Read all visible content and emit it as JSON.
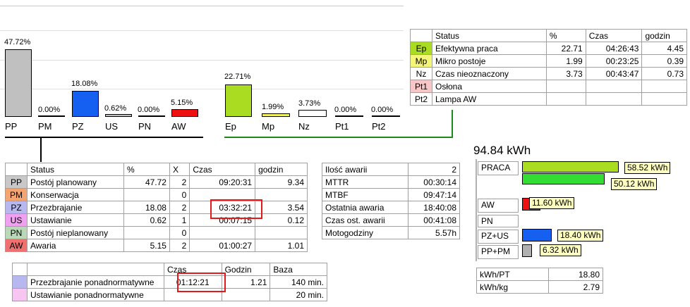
{
  "left_chart": {
    "bars": [
      {
        "code": "PP",
        "pct": "47.72%",
        "value": 47.72,
        "color": "#c0c0c0"
      },
      {
        "code": "PM",
        "pct": "0.00%",
        "value": 0,
        "color": "#c0c0c0"
      },
      {
        "code": "PZ",
        "pct": "18.08%",
        "value": 18.08,
        "color": "#1560f0"
      },
      {
        "code": "US",
        "pct": "0.62%",
        "value": 0.62,
        "color": "#c0c0c0"
      },
      {
        "code": "PN",
        "pct": "0.00%",
        "value": 0,
        "color": "#c0c0c0"
      },
      {
        "code": "AW",
        "pct": "5.15%",
        "value": 5.15,
        "color": "#ee1111"
      }
    ]
  },
  "right_chart": {
    "bars": [
      {
        "code": "Ep",
        "pct": "22.71%",
        "value": 22.71,
        "color": "#aadd22"
      },
      {
        "code": "Mp",
        "pct": "1.99%",
        "value": 1.99,
        "color": "#f0f060"
      },
      {
        "code": "Nz",
        "pct": "3.73%",
        "value": 3.73,
        "color": "#ffffff"
      },
      {
        "code": "Pt1",
        "pct": "0.00%",
        "value": 0,
        "color": "#ffffff"
      },
      {
        "code": "Pt2",
        "pct": "0.00%",
        "value": 0,
        "color": "#ffffff"
      }
    ]
  },
  "top_table": {
    "headers": [
      "",
      "Status",
      "%",
      "Czas",
      "godzin"
    ],
    "rows": [
      {
        "code": "Ep",
        "status": "Efektywna praca",
        "pct": "22.71",
        "czas": "04:26:43",
        "godzin": "4.45",
        "color": "#aadd22"
      },
      {
        "code": "Mp",
        "status": "Mikro postoje",
        "pct": "1.99",
        "czas": "00:23:25",
        "godzin": "0.39",
        "color": "#f5f57a"
      },
      {
        "code": "Nz",
        "status": "Czas nieoznaczony",
        "pct": "3.73",
        "czas": "00:43:47",
        "godzin": "0.73",
        "color": "#ffffff"
      },
      {
        "code": "Pt1",
        "status": "Osłona",
        "pct": "",
        "czas": "",
        "godzin": "",
        "color": "#f7c6c6"
      },
      {
        "code": "Pt2",
        "status": "Lampa AW",
        "pct": "",
        "czas": "",
        "godzin": "",
        "color": "#ffffff"
      }
    ]
  },
  "main_table": {
    "headers": [
      "",
      "Status",
      "%",
      "X",
      "Czas",
      "godzin"
    ],
    "rows": [
      {
        "code": "PP",
        "status": "Postój planowany",
        "pct": "47.72",
        "x": "2",
        "czas": "09:20:31",
        "godzin": "9.34",
        "color": "#c8c8c8"
      },
      {
        "code": "PM",
        "status": "Konserwacja",
        "pct": "",
        "x": "0",
        "czas": "",
        "godzin": "",
        "color": "#f4a470"
      },
      {
        "code": "PZ",
        "status": "Przezbrajanie",
        "pct": "18.08",
        "x": "2",
        "czas": "03:32:21",
        "godzin": "3.54",
        "color": "#b8b8f0"
      },
      {
        "code": "US",
        "status": "Ustawianie",
        "pct": "0.62",
        "x": "1",
        "czas": "00:07:15",
        "godzin": "0.12",
        "color": "#f0a0f0"
      },
      {
        "code": "PN",
        "status": "Postój nieplanowany",
        "pct": "",
        "x": "0",
        "czas": "",
        "godzin": "",
        "color": "#b8d8b8"
      },
      {
        "code": "AW",
        "status": "Awaria",
        "pct": "5.15",
        "x": "2",
        "czas": "01:00:27",
        "godzin": "1.01",
        "color": "#f07070"
      }
    ]
  },
  "over_table": {
    "headers": [
      "",
      "",
      "Czas",
      "Godzin",
      "Baza"
    ],
    "rows": [
      {
        "label": "Przezbrajanie ponadnormatywne",
        "czas": "01:12:21",
        "godzin": "1.21",
        "baza": "140 min.",
        "color": "#b8b8f0"
      },
      {
        "label": "Ustawianie ponadnormatywne",
        "czas": "",
        "godzin": "",
        "baza": "20 min.",
        "color": "#f7c6f0"
      }
    ]
  },
  "stats_table": {
    "rows": [
      {
        "label": "Ilość awarii",
        "value": "2"
      },
      {
        "label": "MTTR",
        "value": "00:30:14"
      },
      {
        "label": "MTBF",
        "value": "09:47:14"
      },
      {
        "label": "Ostatnia awaria",
        "value": "18:40:08"
      },
      {
        "label": "Czas ost. awarii",
        "value": "00:41:08"
      },
      {
        "label": "Motogodziny",
        "value": "5.57h"
      }
    ]
  },
  "energy": {
    "total": "94.84 kWh",
    "praca": {
      "label": "PRACA",
      "v1": "58.52 kWh",
      "v2": "50.12 kWh"
    },
    "aw": {
      "label": "AW",
      "value": "11.60 kWh"
    },
    "pn": {
      "label": "PN"
    },
    "pzus": {
      "label": "PZ+US",
      "value": "18.40 kWh"
    },
    "pppm": {
      "label": "PP+PM",
      "value": "6.32 kWh"
    },
    "ratios": [
      {
        "label": "kWh/PT",
        "value": "18.80"
      },
      {
        "label": "kWh/kg",
        "value": "2.79"
      }
    ]
  }
}
